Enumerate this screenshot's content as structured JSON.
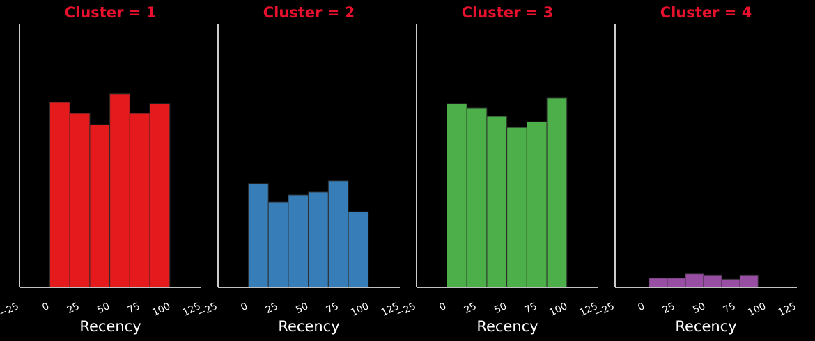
{
  "colors": {
    "background": "#000000",
    "axis": "#ffffff",
    "title": "#e8112d",
    "bar_edge": "#2b2b2b"
  },
  "chart_data": [
    {
      "type": "bar",
      "title": "Cluster = 1",
      "xlabel": "Recency",
      "ylabel": "",
      "color": "#e41a1c",
      "xlim": [
        -25,
        125
      ],
      "xticks": [
        "−25",
        "0",
        "25",
        "50",
        "75",
        "100",
        "125"
      ],
      "bins": [
        [
          0,
          16.5
        ],
        [
          16.5,
          33
        ],
        [
          33,
          49.5
        ],
        [
          49.5,
          66
        ],
        [
          66,
          82.5
        ],
        [
          82.5,
          99
        ]
      ],
      "values": [
        0.66,
        0.62,
        0.58,
        0.69,
        0.62,
        0.655
      ],
      "ylim": [
        0,
        0.94
      ]
    },
    {
      "type": "bar",
      "title": "Cluster = 2",
      "xlabel": "Recency",
      "ylabel": "",
      "color": "#377eb8",
      "xlim": [
        -25,
        125
      ],
      "xticks": [
        "−25",
        "0",
        "25",
        "50",
        "75",
        "100",
        "125"
      ],
      "bins": [
        [
          0,
          16.5
        ],
        [
          16.5,
          33
        ],
        [
          33,
          49.5
        ],
        [
          49.5,
          66
        ],
        [
          66,
          82.5
        ],
        [
          82.5,
          99
        ]
      ],
      "values": [
        0.37,
        0.305,
        0.33,
        0.34,
        0.38,
        0.27
      ],
      "ylim": [
        0,
        0.94
      ]
    },
    {
      "type": "bar",
      "title": "Cluster = 3",
      "xlabel": "Recency",
      "ylabel": "",
      "color": "#4daf4a",
      "xlim": [
        -25,
        125
      ],
      "xticks": [
        "−25",
        "0",
        "25",
        "50",
        "75",
        "100",
        "125"
      ],
      "bins": [
        [
          0,
          16.5
        ],
        [
          16.5,
          33
        ],
        [
          33,
          49.5
        ],
        [
          49.5,
          66
        ],
        [
          66,
          82.5
        ],
        [
          82.5,
          99
        ]
      ],
      "values": [
        0.655,
        0.64,
        0.61,
        0.57,
        0.59,
        0.675
      ],
      "ylim": [
        0,
        0.94
      ]
    },
    {
      "type": "bar",
      "title": "Cluster = 4",
      "xlabel": "Recency",
      "ylabel": "",
      "color": "#984ea3",
      "xlim": [
        -25,
        125
      ],
      "xticks": [
        "−25",
        "0",
        "25",
        "50",
        "75",
        "100",
        "125"
      ],
      "bins": [
        [
          3,
          18
        ],
        [
          18,
          33
        ],
        [
          33,
          48
        ],
        [
          48,
          63
        ],
        [
          63,
          78
        ],
        [
          78,
          93
        ]
      ],
      "values": [
        0.033,
        0.033,
        0.048,
        0.044,
        0.029,
        0.044
      ],
      "ylim": [
        0,
        0.94
      ]
    }
  ]
}
